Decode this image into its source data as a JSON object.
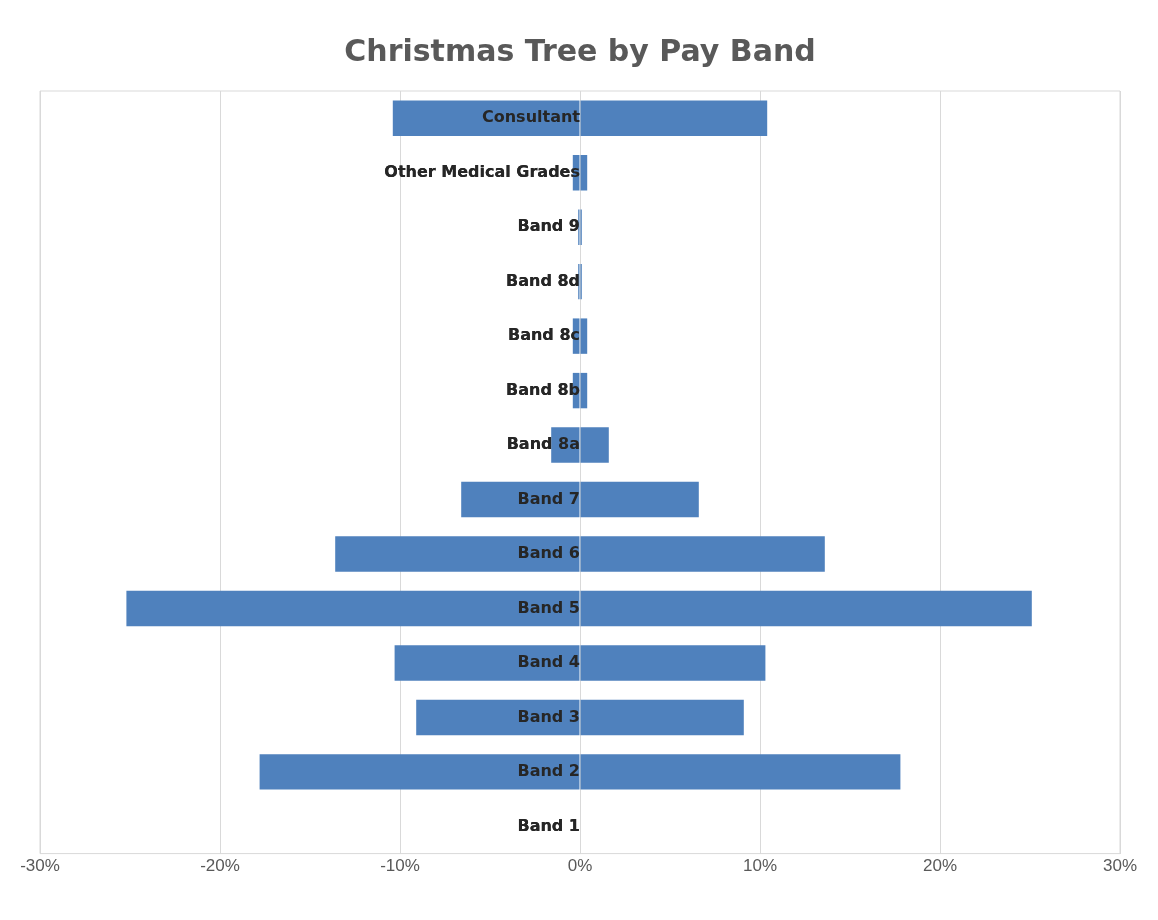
{
  "chart_data": {
    "type": "bar",
    "title": "Christmas Tree by Pay Band",
    "orientation": "horizontal",
    "stacked": true,
    "grid": "x",
    "legend": false,
    "categories": [
      "Consultant",
      "Other Medical Grades",
      "Band 9",
      "Band 8d",
      "Band 8c",
      "Band 8b",
      "Band 8a",
      "Band 7",
      "Band 6",
      "Band 5",
      "Band 4",
      "Band 3",
      "Band 2",
      "Band 1"
    ],
    "series": [
      {
        "color": "#4f81bd",
        "values": [
          -10.4,
          -0.4,
          -0.1,
          -0.1,
          -0.4,
          -0.4,
          -1.6,
          -6.6,
          -13.6,
          -25.2,
          -10.3,
          -9.1,
          -17.8,
          0
        ]
      },
      {
        "color": "#4f81bd",
        "values": [
          10.4,
          0.4,
          0.1,
          0.1,
          0.4,
          0.4,
          1.6,
          6.6,
          13.6,
          25.1,
          10.3,
          9.1,
          17.8,
          0
        ]
      }
    ],
    "xlim": [
      -30,
      30
    ],
    "xticks": [
      {
        "value": -30,
        "label": "-30%"
      },
      {
        "value": -20,
        "label": "-20%"
      },
      {
        "value": -10,
        "label": "-10%"
      },
      {
        "value": 0,
        "label": "0%"
      },
      {
        "value": 10,
        "label": "10%"
      },
      {
        "value": 20,
        "label": "20%"
      },
      {
        "value": 30,
        "label": "30%"
      }
    ]
  }
}
